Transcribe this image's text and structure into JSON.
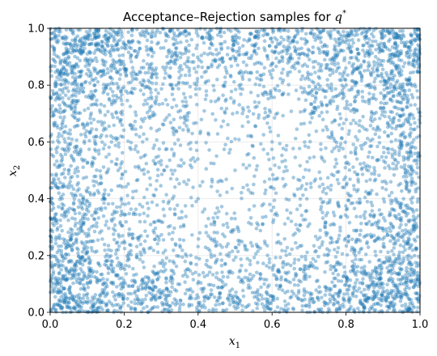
{
  "chart_data": {
    "type": "scatter",
    "title": "Acceptance–Rejection samples for q*",
    "title_main": "Acceptance–Rejection samples for ",
    "title_symbol": "q",
    "title_superscript": "*",
    "xlabel": "x1",
    "xlabel_base": "x",
    "xlabel_sub": "1",
    "ylabel": "x2",
    "ylabel_base": "x",
    "ylabel_sub": "2",
    "xlim": [
      0.0,
      1.0
    ],
    "ylim": [
      0.0,
      1.0
    ],
    "xticks": [
      0.0,
      0.2,
      0.4,
      0.6,
      0.8,
      1.0
    ],
    "yticks": [
      0.0,
      0.2,
      0.4,
      0.6,
      0.8,
      1.0
    ],
    "xtick_labels": [
      "0.0",
      "0.2",
      "0.4",
      "0.6",
      "0.8",
      "1.0"
    ],
    "ytick_labels": [
      "0.0",
      "0.2",
      "0.4",
      "0.6",
      "0.8",
      "1.0"
    ],
    "grid": true,
    "legend": false,
    "marker_color": "#1f77b4",
    "marker_alpha": 0.4,
    "approx_sample_count": 5000,
    "density_description": "points concentrate near the four corners and thin out toward the center (0.5, 0.5)",
    "sample_points": [
      [
        0.02,
        0.03
      ],
      [
        0.05,
        0.08
      ],
      [
        0.08,
        0.02
      ],
      [
        0.1,
        0.12
      ],
      [
        0.03,
        0.15
      ],
      [
        0.12,
        0.05
      ],
      [
        0.15,
        0.18
      ],
      [
        0.06,
        0.22
      ],
      [
        0.18,
        0.09
      ],
      [
        0.2,
        0.25
      ],
      [
        0.02,
        0.95
      ],
      [
        0.05,
        0.9
      ],
      [
        0.1,
        0.97
      ],
      [
        0.12,
        0.85
      ],
      [
        0.04,
        0.82
      ],
      [
        0.15,
        0.92
      ],
      [
        0.18,
        0.88
      ],
      [
        0.08,
        0.78
      ],
      [
        0.22,
        0.95
      ],
      [
        0.25,
        0.8
      ],
      [
        0.95,
        0.05
      ],
      [
        0.9,
        0.1
      ],
      [
        0.97,
        0.02
      ],
      [
        0.85,
        0.08
      ],
      [
        0.92,
        0.18
      ],
      [
        0.88,
        0.03
      ],
      [
        0.82,
        0.15
      ],
      [
        0.96,
        0.22
      ],
      [
        0.78,
        0.06
      ],
      [
        0.75,
        0.2
      ],
      [
        0.95,
        0.95
      ],
      [
        0.9,
        0.92
      ],
      [
        0.97,
        0.88
      ],
      [
        0.85,
        0.97
      ],
      [
        0.92,
        0.82
      ],
      [
        0.88,
        0.9
      ],
      [
        0.82,
        0.85
      ],
      [
        0.96,
        0.78
      ],
      [
        0.78,
        0.94
      ],
      [
        0.75,
        0.8
      ],
      [
        0.5,
        0.5
      ],
      [
        0.45,
        0.55
      ],
      [
        0.55,
        0.45
      ],
      [
        0.4,
        0.4
      ],
      [
        0.6,
        0.6
      ],
      [
        0.35,
        0.65
      ],
      [
        0.65,
        0.35
      ],
      [
        0.48,
        0.3
      ],
      [
        0.3,
        0.52
      ],
      [
        0.7,
        0.5
      ],
      [
        0.52,
        0.7
      ],
      [
        0.58,
        0.25
      ],
      [
        0.25,
        0.6
      ],
      [
        0.42,
        0.75
      ],
      [
        0.62,
        0.78
      ]
    ]
  }
}
